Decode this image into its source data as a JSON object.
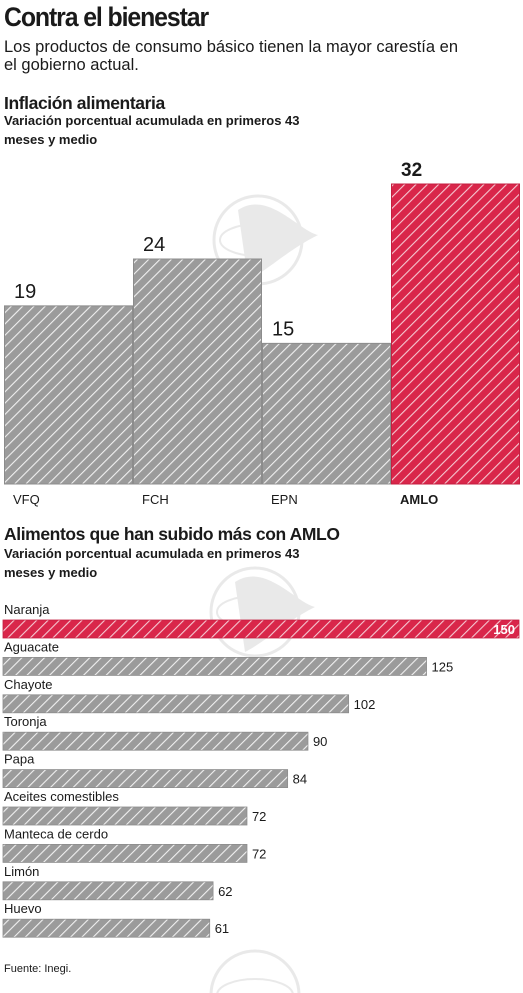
{
  "title": "Contra el bienestar",
  "subtitle": "Los productos de consumo básico tienen la mayor carestía en el gobierno actual.",
  "source": "Fuente: Inegi.",
  "colors": {
    "highlight": "#d9264a",
    "bar": "#9b9b9b",
    "hatch": "#ffffff"
  },
  "chart_data": [
    {
      "type": "bar",
      "title": "Inflación alimentaria",
      "subtitle": "Variación porcentual acumulada en primeros 43 meses y medio",
      "categories": [
        "VFQ",
        "FCH",
        "EPN",
        "AMLO"
      ],
      "values": [
        19,
        24,
        15,
        32
      ],
      "highlight": "AMLO",
      "ylim": [
        0,
        32
      ],
      "grid": false
    },
    {
      "type": "bar",
      "orientation": "horizontal",
      "title": "Alimentos que han subido más con AMLO",
      "subtitle": "Variación porcentual acumulada en primeros 43 meses y medio",
      "categories": [
        "Naranja",
        "Aguacate",
        "Chayote",
        "Toronja",
        "Papa",
        "Aceites comestibles",
        "Manteca de cerdo",
        "Limón",
        "Huevo"
      ],
      "values": [
        150,
        125,
        102,
        90,
        84,
        72,
        72,
        62,
        61
      ],
      "highlight": "Naranja",
      "xlim": [
        0,
        150
      ],
      "grid": false
    }
  ]
}
